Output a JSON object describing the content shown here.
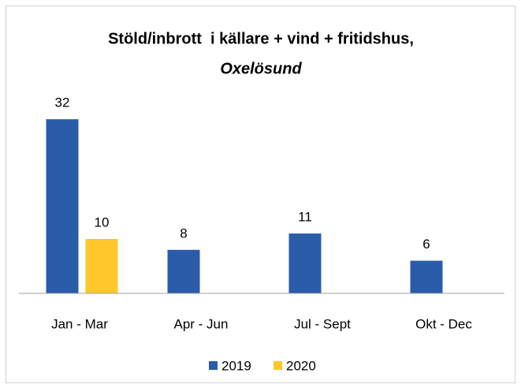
{
  "chart_data": {
    "type": "bar",
    "title": "Stöld/inbrott  i källare + vind + fritidshus,",
    "subtitle": "Oxelösund",
    "categories": [
      "Jan - Mar",
      "Apr - Jun",
      "Jul - Sept",
      "Okt - Dec"
    ],
    "series": [
      {
        "name": "2019",
        "color": "#2a5caa",
        "values": [
          32,
          8,
          11,
          6
        ]
      },
      {
        "name": "2020",
        "color": "#ffc72c",
        "values": [
          10,
          null,
          null,
          null
        ]
      }
    ],
    "ylim": [
      0,
      35
    ],
    "legend": "bottom"
  }
}
